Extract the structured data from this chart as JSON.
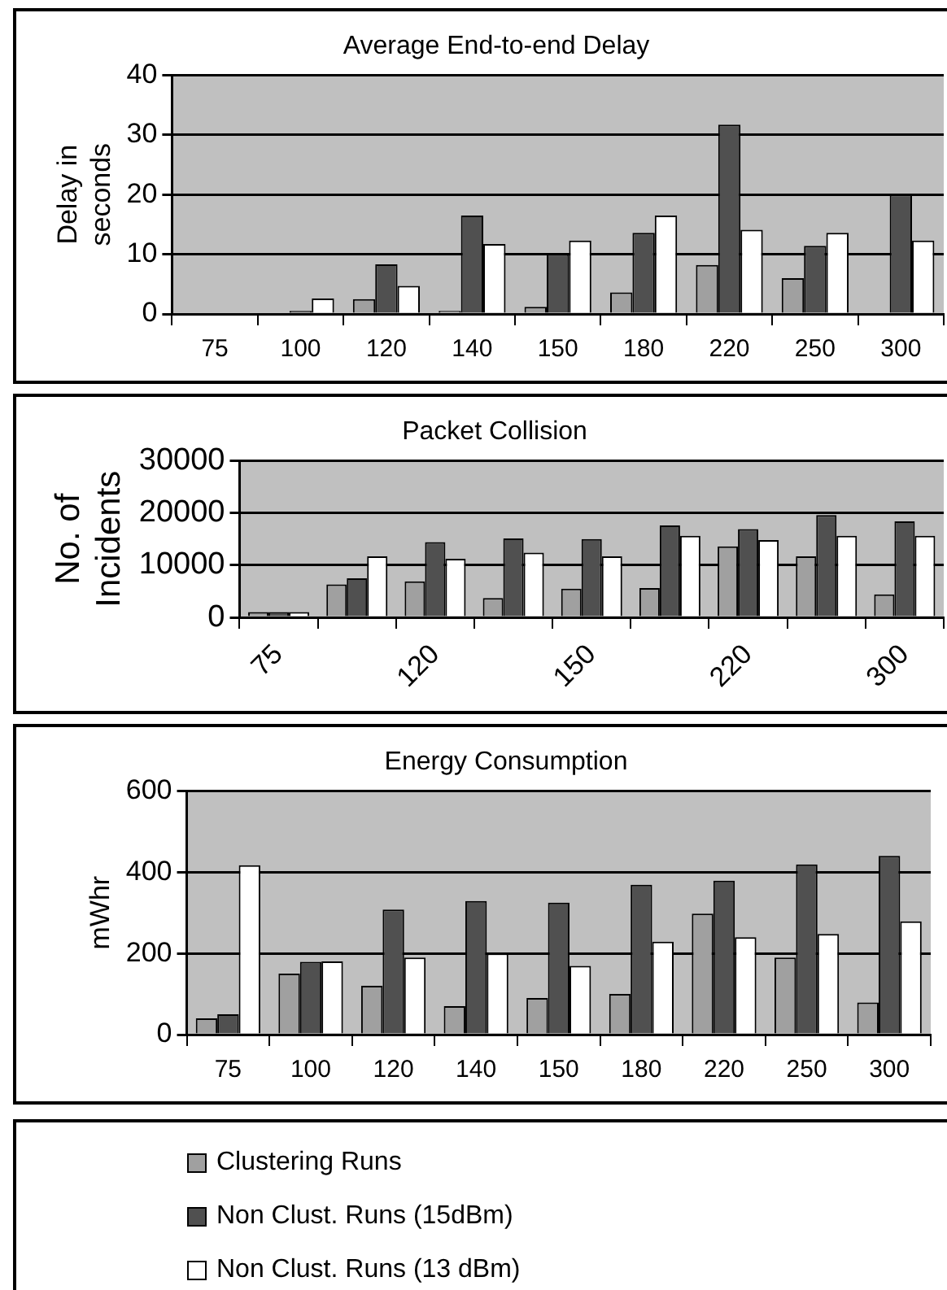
{
  "chart_data": [
    {
      "type": "bar",
      "title": "Average End-to-end Delay",
      "ylabel": "Delay in seconds",
      "categories": [
        "75",
        "100",
        "120",
        "140",
        "150",
        "180",
        "220",
        "250",
        "300"
      ],
      "ylim": [
        0,
        40
      ],
      "yticks": [
        0,
        10,
        20,
        30,
        40
      ],
      "grid": "y",
      "series": [
        {
          "color": "#a0a0a0",
          "values": [
            0,
            0,
            2.5,
            0.5,
            1.2,
            3.6,
            8.2,
            6,
            0
          ]
        },
        {
          "color": "#505050",
          "values": [
            0,
            0.5,
            8.3,
            16.5,
            10,
            13.6,
            31.7,
            11.4,
            20
          ]
        },
        {
          "color": "#ffffff",
          "values": [
            0,
            2.6,
            4.7,
            11.7,
            12.3,
            16.5,
            14.1,
            13.6,
            12.3
          ]
        }
      ]
    },
    {
      "type": "bar",
      "title": "Packet Collision",
      "ylabel": "No. of Incidents",
      "categories": [
        "75",
        null,
        "120",
        null,
        "150",
        null,
        "220",
        null,
        "300"
      ],
      "ylim": [
        0,
        30000
      ],
      "yticks": [
        0,
        10000,
        20000,
        30000
      ],
      "grid": "y",
      "series": [
        {
          "color": "#a0a0a0",
          "values": [
            1000,
            6300,
            6900,
            3700,
            5500,
            5600,
            13600,
            11700,
            4400
          ]
        },
        {
          "color": "#505050",
          "values": [
            1000,
            7500,
            14400,
            15100,
            15000,
            17600,
            16900,
            19600,
            18400
          ]
        },
        {
          "color": "#ffffff",
          "values": [
            1000,
            11700,
            11200,
            12400,
            11700,
            15600,
            14800,
            15600,
            15600
          ]
        }
      ]
    },
    {
      "type": "bar",
      "title": "Energy Consumption",
      "ylabel": "mWhr",
      "categories": [
        "75",
        "100",
        "120",
        "140",
        "150",
        "180",
        "220",
        "250",
        "300"
      ],
      "ylim": [
        0,
        600
      ],
      "yticks": [
        0,
        200,
        400,
        600
      ],
      "grid": "y",
      "legend": "bottom",
      "series": [
        {
          "name": "Clustering Runs",
          "color": "#a0a0a0",
          "values": [
            40,
            150,
            120,
            70,
            90,
            100,
            298,
            190,
            79
          ]
        },
        {
          "name": "Non Clust. Runs (15dBm)",
          "color": "#505050",
          "values": [
            50,
            179,
            308,
            329,
            325,
            369,
            379,
            419,
            440
          ]
        },
        {
          "name": "Non Clust. Runs (13 dBm)",
          "color": "#ffffff",
          "values": [
            417,
            180,
            190,
            200,
            169,
            229,
            240,
            248,
            279
          ]
        }
      ]
    }
  ]
}
